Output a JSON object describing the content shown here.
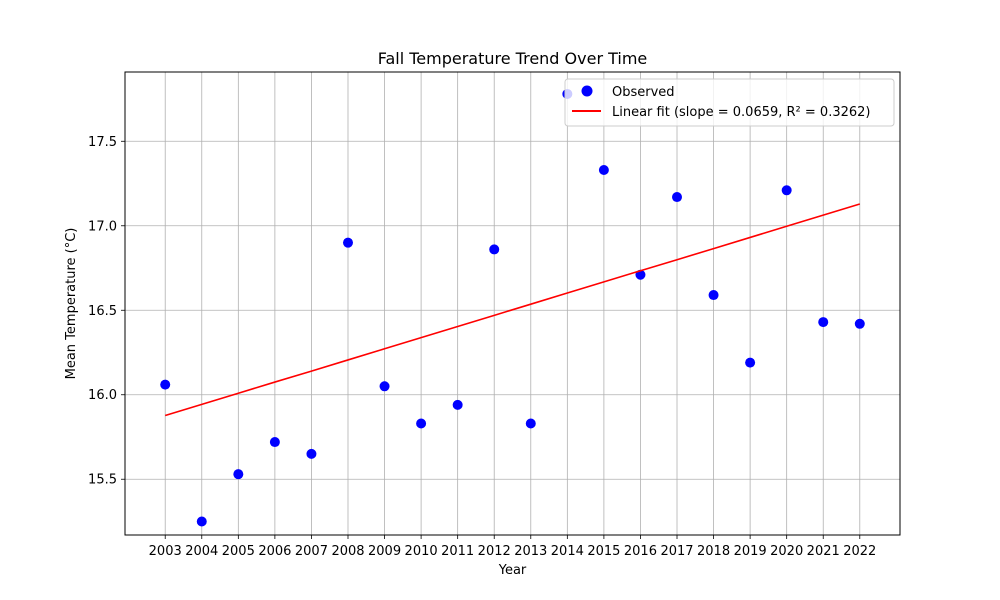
{
  "chart_data": {
    "type": "scatter",
    "title": "Fall Temperature Trend Over Time",
    "xlabel": "Year",
    "ylabel": "Mean Temperature (°C)",
    "x": [
      2003,
      2004,
      2005,
      2006,
      2007,
      2008,
      2009,
      2010,
      2011,
      2012,
      2013,
      2014,
      2015,
      2016,
      2017,
      2018,
      2019,
      2020,
      2021,
      2022
    ],
    "x_tick_labels": [
      "2003",
      "2004",
      "2005",
      "2006",
      "2007",
      "2008",
      "2009",
      "2010",
      "2011",
      "2012",
      "2013",
      "2014",
      "2015",
      "2016",
      "2017",
      "2018",
      "2019",
      "2020",
      "2021",
      "2022"
    ],
    "y_ticks": [
      15.5,
      16.0,
      16.5,
      17.0,
      17.5
    ],
    "y_tick_labels": [
      "15.5",
      "16.0",
      "16.5",
      "17.0",
      "17.5"
    ],
    "xlim": [
      2001.9,
      2023.1
    ],
    "ylim": [
      15.17,
      17.91
    ],
    "grid": true,
    "legend_position": "top-right",
    "series": [
      {
        "name": "Observed",
        "kind": "scatter",
        "color": "#0000ff",
        "values": [
          16.06,
          15.25,
          15.53,
          15.72,
          15.65,
          16.9,
          16.05,
          15.83,
          15.94,
          16.86,
          15.83,
          17.78,
          17.33,
          16.71,
          17.17,
          16.59,
          16.19,
          17.21,
          16.43,
          16.42
        ]
      },
      {
        "name": "Linear fit (slope = 0.0659, R² = 0.3262)",
        "kind": "line",
        "color": "#ff0000",
        "values": [
          15.877,
          15.943,
          16.009,
          16.075,
          16.14,
          16.206,
          16.272,
          16.338,
          16.404,
          16.47,
          16.536,
          16.602,
          16.668,
          16.734,
          16.799,
          16.865,
          16.931,
          16.997,
          17.063,
          17.129
        ]
      }
    ]
  }
}
